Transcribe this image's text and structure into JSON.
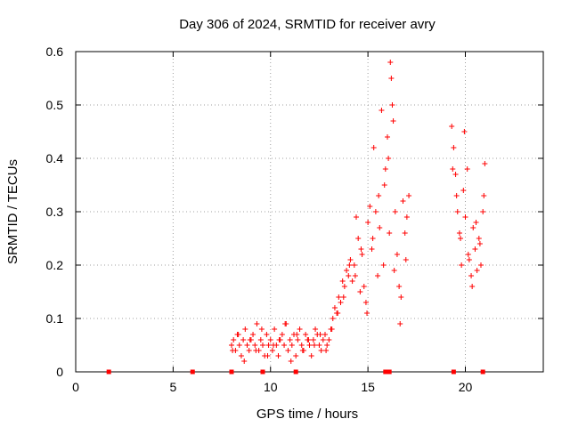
{
  "chart_data": {
    "type": "scatter",
    "title": "Day 306 of 2024, SRMTID for receiver avry",
    "xlabel": "GPS time / hours",
    "ylabel": "SRMTID / TECUs",
    "xlim": [
      0,
      24
    ],
    "ylim": [
      0,
      0.6
    ],
    "xticks": [
      0,
      5,
      10,
      15,
      20
    ],
    "xtick_labels": [
      "0",
      "5",
      "10",
      "15",
      "20"
    ],
    "yticks": [
      0,
      0.1,
      0.2,
      0.3,
      0.4,
      0.5,
      0.6
    ],
    "ytick_labels": [
      "0",
      "0.1",
      "0.2",
      "0.3",
      "0.4",
      "0.5",
      "0.6"
    ],
    "grid": true,
    "marker": "+",
    "color": "#ff0000",
    "baseline_markers_x": [
      1.7,
      6.0,
      8.0,
      9.6,
      11.3,
      15.9,
      16.1,
      19.4,
      20.9
    ],
    "series": [
      {
        "name": "SRMTID",
        "x": [
          8.0,
          8.1,
          8.2,
          8.3,
          8.4,
          8.5,
          8.6,
          8.7,
          8.8,
          8.9,
          9.0,
          9.1,
          9.2,
          9.3,
          9.4,
          9.5,
          9.6,
          9.7,
          9.8,
          9.9,
          10.0,
          10.1,
          10.2,
          10.3,
          10.4,
          10.5,
          10.6,
          10.7,
          10.8,
          10.9,
          11.0,
          11.1,
          11.2,
          11.3,
          11.4,
          11.5,
          11.6,
          11.7,
          11.8,
          11.9,
          12.0,
          12.1,
          12.2,
          12.3,
          12.4,
          12.5,
          12.6,
          12.7,
          12.8,
          12.9,
          13.0,
          13.1,
          13.2,
          13.3,
          13.4,
          13.5,
          13.6,
          13.7,
          13.8,
          13.9,
          14.0,
          14.1,
          14.2,
          14.3,
          14.4,
          14.5,
          14.6,
          14.7,
          14.8,
          14.9,
          15.0,
          15.1,
          15.2,
          15.3,
          15.4,
          15.5,
          15.6,
          15.7,
          15.8,
          15.9,
          16.0,
          16.1,
          16.15,
          16.2,
          16.25,
          16.3,
          16.4,
          16.5,
          16.6,
          16.7,
          16.8,
          16.9,
          17.0,
          17.1,
          8.05,
          8.35,
          8.65,
          8.95,
          9.25,
          9.55,
          9.85,
          10.15,
          10.45,
          10.75,
          11.05,
          11.35,
          11.65,
          11.95,
          12.25,
          12.55,
          12.85,
          13.15,
          13.45,
          13.75,
          14.05,
          14.35,
          14.65,
          14.95,
          15.25,
          15.55,
          15.85,
          16.05,
          16.35,
          16.65,
          16.95,
          19.3,
          19.4,
          19.5,
          19.6,
          19.7,
          19.8,
          19.9,
          20.0,
          20.1,
          20.2,
          20.3,
          20.4,
          20.5,
          20.6,
          20.7,
          20.8,
          20.9,
          21.0,
          19.35,
          19.55,
          19.75,
          19.95,
          20.15,
          20.35,
          20.55,
          20.75,
          20.95
        ],
        "y": [
          0.05,
          0.06,
          0.04,
          0.07,
          0.05,
          0.03,
          0.06,
          0.08,
          0.05,
          0.04,
          0.06,
          0.07,
          0.05,
          0.09,
          0.04,
          0.06,
          0.05,
          0.03,
          0.07,
          0.05,
          0.06,
          0.04,
          0.08,
          0.05,
          0.03,
          0.06,
          0.07,
          0.05,
          0.09,
          0.04,
          0.06,
          0.05,
          0.07,
          0.03,
          0.06,
          0.08,
          0.05,
          0.04,
          0.07,
          0.06,
          0.05,
          0.03,
          0.06,
          0.08,
          0.07,
          0.05,
          0.04,
          0.06,
          0.07,
          0.05,
          0.06,
          0.08,
          0.1,
          0.12,
          0.11,
          0.14,
          0.13,
          0.17,
          0.16,
          0.19,
          0.18,
          0.21,
          0.17,
          0.2,
          0.29,
          0.25,
          0.15,
          0.22,
          0.16,
          0.13,
          0.28,
          0.31,
          0.23,
          0.42,
          0.3,
          0.18,
          0.27,
          0.49,
          0.2,
          0.38,
          0.44,
          0.26,
          0.58,
          0.55,
          0.5,
          0.47,
          0.3,
          0.22,
          0.16,
          0.14,
          0.32,
          0.26,
          0.29,
          0.33,
          0.04,
          0.07,
          0.02,
          0.06,
          0.04,
          0.08,
          0.03,
          0.05,
          0.06,
          0.09,
          0.02,
          0.07,
          0.04,
          0.06,
          0.05,
          0.07,
          0.04,
          0.08,
          0.11,
          0.14,
          0.2,
          0.18,
          0.23,
          0.11,
          0.25,
          0.33,
          0.35,
          0.4,
          0.19,
          0.09,
          0.21,
          0.46,
          0.42,
          0.37,
          0.3,
          0.26,
          0.2,
          0.34,
          0.29,
          0.38,
          0.21,
          0.18,
          0.27,
          0.23,
          0.19,
          0.25,
          0.2,
          0.3,
          0.39,
          0.38,
          0.33,
          0.25,
          0.45,
          0.22,
          0.16,
          0.28,
          0.24,
          0.33
        ]
      }
    ]
  }
}
